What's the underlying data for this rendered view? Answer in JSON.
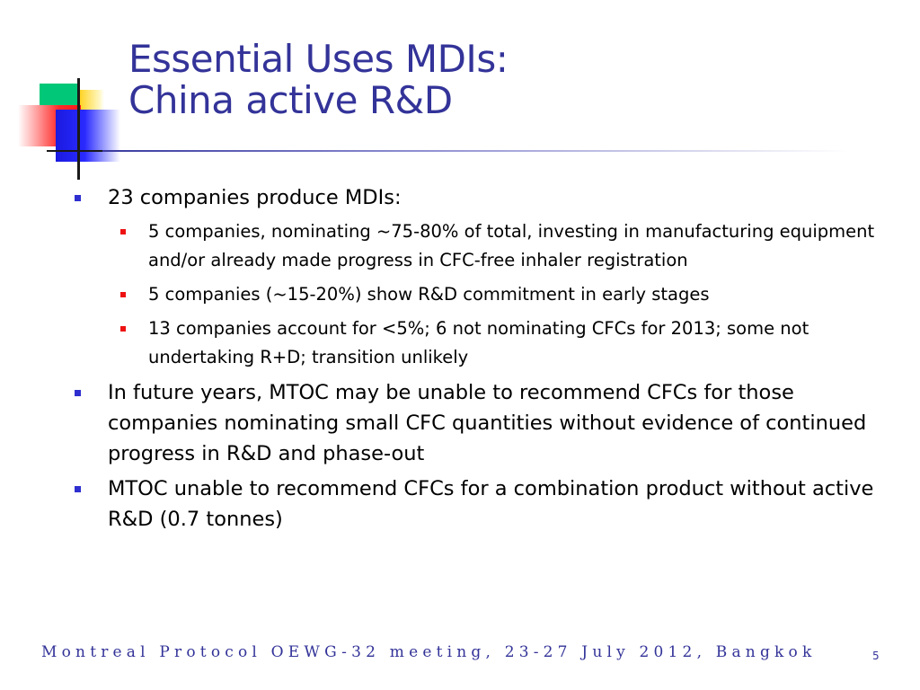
{
  "slide": {
    "title_line1": "Essential Uses MDIs:",
    "title_line2": "China active R&D",
    "bullets": [
      {
        "text": "23 companies produce MDIs:"
      },
      {
        "text": "5 companies, nominating ~75-80% of total, investing in manufacturing equipment and/or already made progress in CFC-free inhaler registration"
      },
      {
        "text": "5 companies (~15-20%) show R&D commitment in early stages"
      },
      {
        "text": "13 companies account for <5%; 6 not nominating CFCs for 2013; some not undertaking R+D; transition unlikely"
      },
      {
        "text": "In future years, MTOC may be unable to recommend CFCs for those companies nominating small CFC quantities without evidence of continued progress in R&D and phase-out"
      },
      {
        "text": "MTOC unable to recommend CFCs for a combination product without active R&D (0.7 tonnes)"
      }
    ],
    "footer": "Montreal Protocol OEWG-32 meeting, 23-27 July 2012, Bangkok",
    "page_number": "5"
  },
  "colors": {
    "title": "#333399",
    "level1_bullet": "#2f2fd0",
    "level2_bullet": "#ee1111",
    "footer": "#333399"
  },
  "icons": {
    "logo": "colored-squares-logo"
  }
}
